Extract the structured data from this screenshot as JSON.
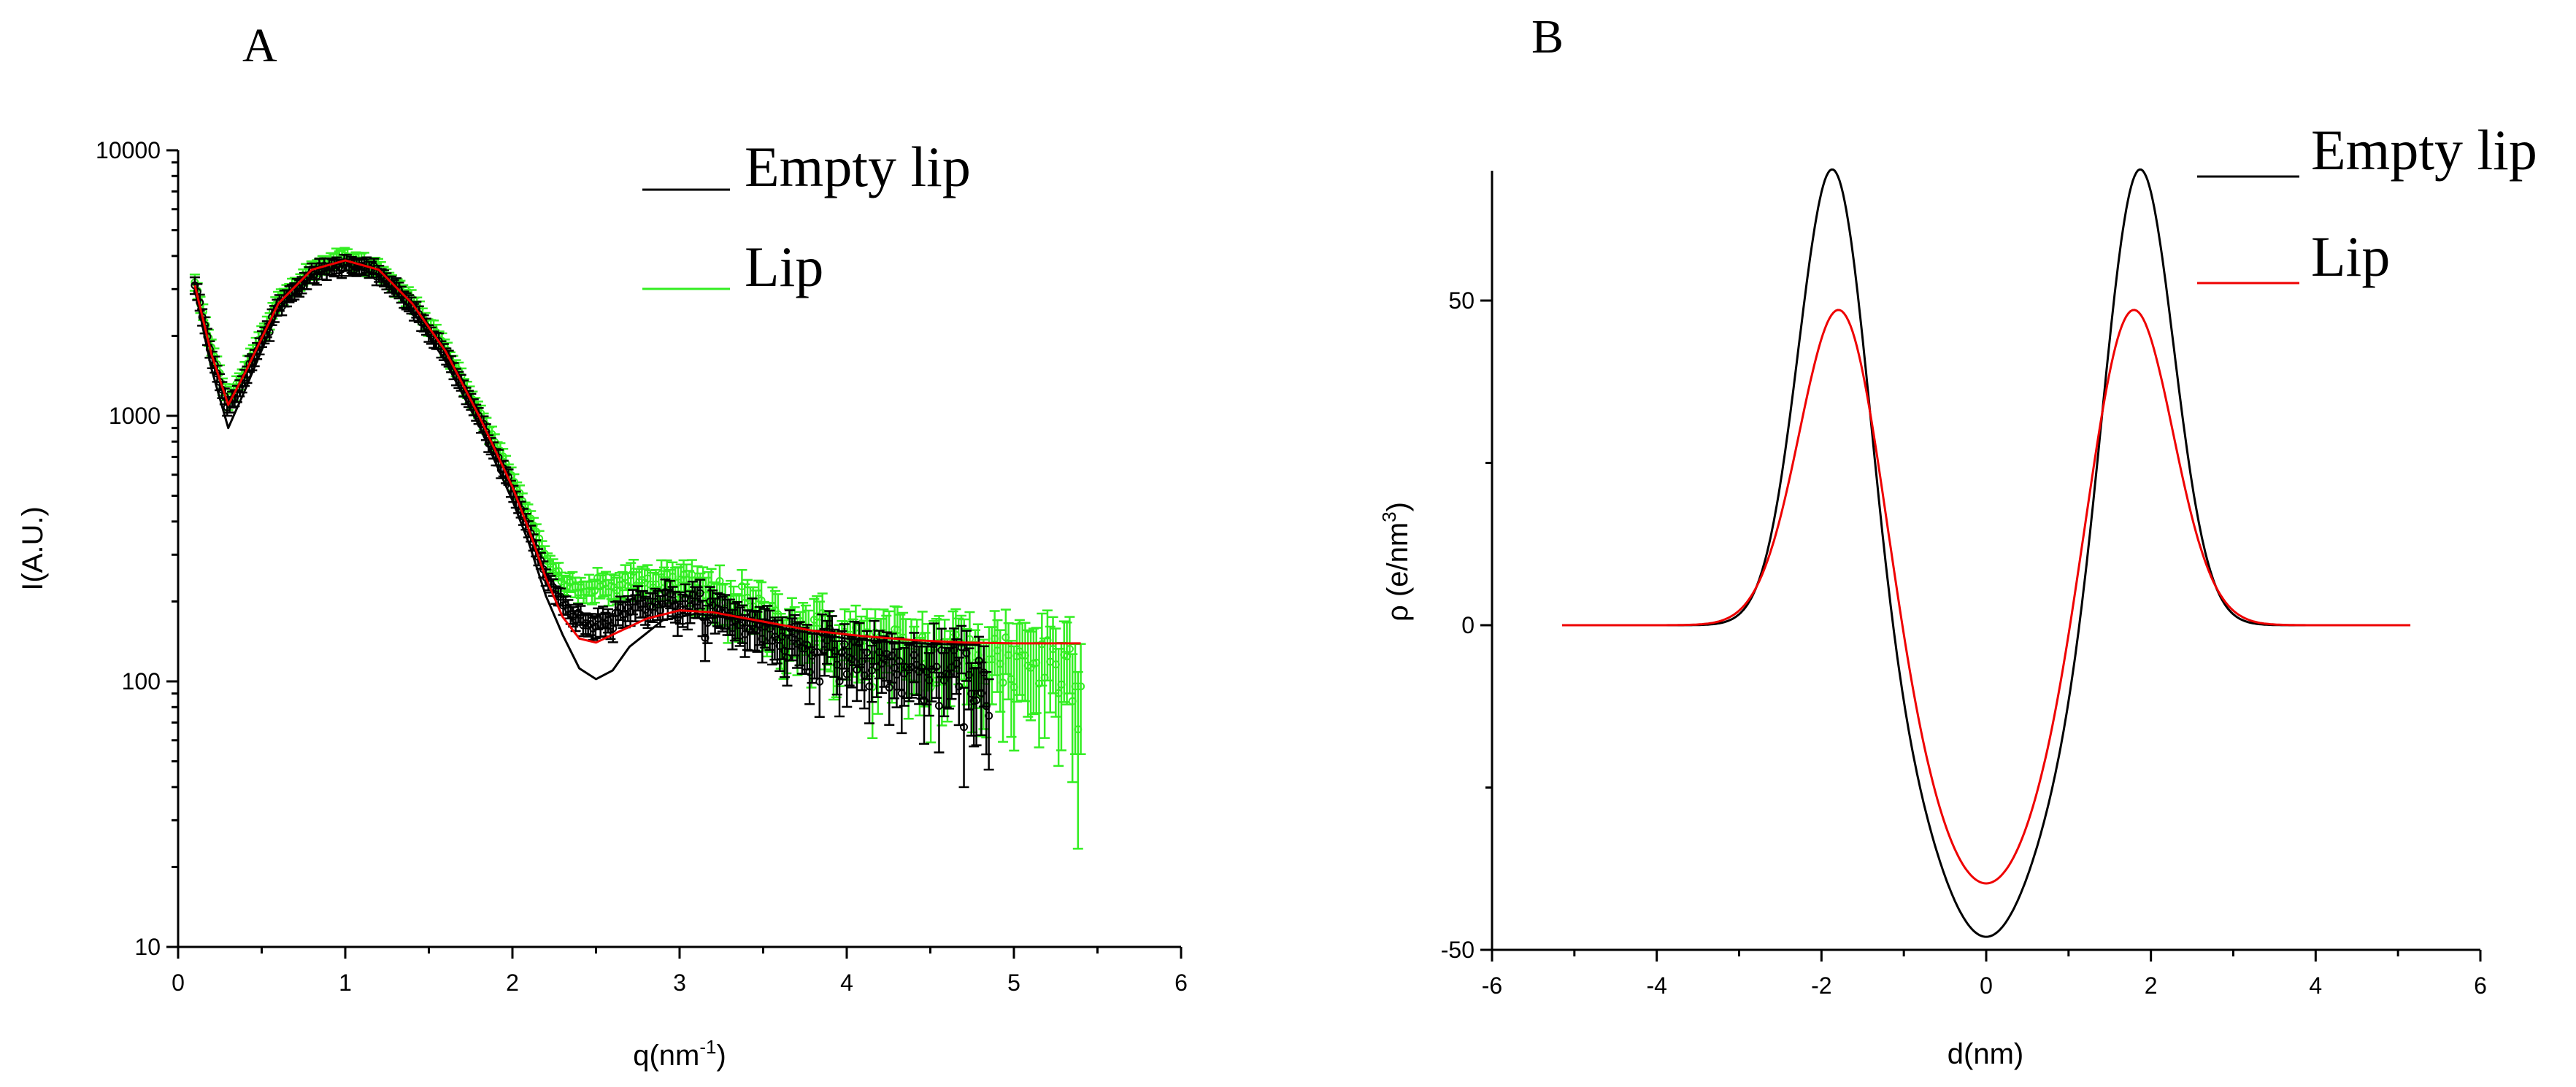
{
  "chart_data": [
    {
      "type": "scatter",
      "panel_label": "A",
      "xlabel": "q(nm",
      "xlabel_sup": "-1",
      "xlabel_suffix": ")",
      "ylabel": "I(A.U.)",
      "xlim": [
        0,
        6
      ],
      "ylim": [
        10,
        10000
      ],
      "yscale": "log",
      "x_ticks": [
        0,
        1,
        2,
        3,
        4,
        5,
        6
      ],
      "x_tick_labels": [
        "0",
        "1",
        "2",
        "3",
        "4",
        "5",
        "6"
      ],
      "y_ticks": [
        10,
        100,
        1000,
        10000
      ],
      "y_tick_labels": [
        "10",
        "100",
        "1000",
        "10000"
      ],
      "legend": {
        "placement": "top-right",
        "entries": [
          {
            "label": "Empty lip",
            "color": "#000000"
          },
          {
            "label": "Lip",
            "color": "#33ee22"
          }
        ]
      },
      "series": [
        {
          "name": "Lip",
          "kind": "points-with-errorbars",
          "color": "#33ee22",
          "x_range": [
            0.1,
            5.4
          ],
          "relative_noise_at_high_q": 0.3,
          "trend": [
            [
              0.1,
              3200
            ],
            [
              0.2,
              1800
            ],
            [
              0.3,
              1150
            ],
            [
              0.4,
              1500
            ],
            [
              0.6,
              2700
            ],
            [
              0.8,
              3600
            ],
            [
              1.0,
              3950
            ],
            [
              1.2,
              3600
            ],
            [
              1.4,
              2700
            ],
            [
              1.6,
              1800
            ],
            [
              1.8,
              1050
            ],
            [
              2.0,
              580
            ],
            [
              2.1,
              420
            ],
            [
              2.2,
              290
            ],
            [
              2.3,
              240
            ],
            [
              2.4,
              220
            ],
            [
              2.5,
              225
            ],
            [
              2.7,
              235
            ],
            [
              2.9,
              238
            ],
            [
              3.1,
              225
            ],
            [
              3.4,
              190
            ],
            [
              3.7,
              160
            ],
            [
              4.0,
              140
            ],
            [
              4.3,
              130
            ],
            [
              4.6,
              125
            ],
            [
              4.9,
              122
            ],
            [
              5.2,
              120
            ],
            [
              5.4,
              115
            ]
          ]
        },
        {
          "name": "Empty lip",
          "kind": "points-with-errorbars",
          "color": "#000000",
          "x_range": [
            0.1,
            4.85
          ],
          "relative_noise_at_high_q": 0.25,
          "trend": [
            [
              0.1,
              3200
            ],
            [
              0.2,
              1700
            ],
            [
              0.3,
              1050
            ],
            [
              0.4,
              1400
            ],
            [
              0.6,
              2600
            ],
            [
              0.8,
              3450
            ],
            [
              1.0,
              3750
            ],
            [
              1.2,
              3450
            ],
            [
              1.4,
              2600
            ],
            [
              1.6,
              1700
            ],
            [
              1.8,
              980
            ],
            [
              2.0,
              520
            ],
            [
              2.1,
              370
            ],
            [
              2.2,
              250
            ],
            [
              2.3,
              195
            ],
            [
              2.4,
              170
            ],
            [
              2.5,
              165
            ],
            [
              2.7,
              190
            ],
            [
              2.9,
              200
            ],
            [
              3.1,
              190
            ],
            [
              3.4,
              165
            ],
            [
              3.7,
              140
            ],
            [
              4.0,
              125
            ],
            [
              4.3,
              112
            ],
            [
              4.6,
              105
            ],
            [
              4.85,
              100
            ]
          ]
        },
        {
          "name": "Empty lip fit",
          "kind": "line",
          "color": "#000000",
          "points": [
            [
              0.1,
              3000
            ],
            [
              0.2,
              1500
            ],
            [
              0.3,
              900
            ],
            [
              0.4,
              1250
            ],
            [
              0.6,
              2500
            ],
            [
              0.8,
              3400
            ],
            [
              1.0,
              3700
            ],
            [
              1.2,
              3400
            ],
            [
              1.4,
              2500
            ],
            [
              1.6,
              1600
            ],
            [
              1.8,
              920
            ],
            [
              2.0,
              480
            ],
            [
              2.1,
              330
            ],
            [
              2.2,
              210
            ],
            [
              2.3,
              150
            ],
            [
              2.4,
              112
            ],
            [
              2.5,
              102
            ],
            [
              2.6,
              110
            ],
            [
              2.7,
              135
            ],
            [
              2.9,
              170
            ],
            [
              3.1,
              180
            ],
            [
              3.4,
              170
            ],
            [
              3.7,
              155
            ],
            [
              4.0,
              145
            ],
            [
              4.3,
              140
            ],
            [
              4.6,
              138
            ],
            [
              4.8,
              137
            ]
          ]
        },
        {
          "name": "Lip fit",
          "kind": "line",
          "color": "#ee0000",
          "points": [
            [
              0.1,
              3100
            ],
            [
              0.2,
              1700
            ],
            [
              0.3,
              1100
            ],
            [
              0.4,
              1450
            ],
            [
              0.6,
              2650
            ],
            [
              0.8,
              3550
            ],
            [
              1.0,
              3850
            ],
            [
              1.2,
              3550
            ],
            [
              1.4,
              2650
            ],
            [
              1.6,
              1750
            ],
            [
              1.8,
              1000
            ],
            [
              2.0,
              540
            ],
            [
              2.1,
              370
            ],
            [
              2.2,
              245
            ],
            [
              2.3,
              175
            ],
            [
              2.4,
              145
            ],
            [
              2.5,
              140
            ],
            [
              2.6,
              150
            ],
            [
              2.8,
              172
            ],
            [
              3.0,
              185
            ],
            [
              3.2,
              182
            ],
            [
              3.5,
              168
            ],
            [
              3.8,
              155
            ],
            [
              4.1,
              148
            ],
            [
              4.4,
              143
            ],
            [
              4.7,
              140
            ],
            [
              5.0,
              139
            ],
            [
              5.4,
              139
            ]
          ]
        }
      ]
    },
    {
      "type": "line",
      "panel_label": "B",
      "xlabel": "d(nm)",
      "ylabel": "ρ (e/nm",
      "ylabel_sup": "3",
      "ylabel_suffix": ")",
      "xlim": [
        -6,
        6
      ],
      "ylim": [
        -50,
        70
      ],
      "x_ticks": [
        -6,
        -4,
        -2,
        0,
        2,
        4,
        6
      ],
      "x_tick_labels": [
        "-6",
        "-4",
        "-2",
        "0",
        "2",
        "4",
        "6"
      ],
      "y_ticks": [
        -50,
        0,
        50
      ],
      "y_tick_labels": [
        "-50",
        "0",
        "50"
      ],
      "legend": {
        "placement": "top-right",
        "entries": [
          {
            "label": "Empty lip",
            "color": "#000000"
          },
          {
            "label": "Lip",
            "color": "#ee0000"
          }
        ]
      },
      "series": [
        {
          "name": "Empty lip",
          "color": "#000000",
          "x_range": [
            -4,
            4
          ],
          "base": 0,
          "components": [
            {
              "type": "gauss",
              "amplitude": 73,
              "center": -1.85,
              "sigma": 0.42
            },
            {
              "type": "gauss",
              "amplitude": 73,
              "center": 1.85,
              "sigma": 0.42
            },
            {
              "type": "gauss",
              "amplitude": -48,
              "center": 0,
              "sigma": 0.78
            }
          ]
        },
        {
          "name": "Lip",
          "color": "#ee0000",
          "x_range": [
            -5.15,
            5.15
          ],
          "base": 0,
          "components": [
            {
              "type": "gauss",
              "amplitude": 52,
              "center": -1.75,
              "sigma": 0.5
            },
            {
              "type": "gauss",
              "amplitude": 52,
              "center": 1.75,
              "sigma": 0.5
            },
            {
              "type": "gauss",
              "amplitude": -40,
              "center": 0,
              "sigma": 0.8
            }
          ]
        }
      ]
    }
  ]
}
